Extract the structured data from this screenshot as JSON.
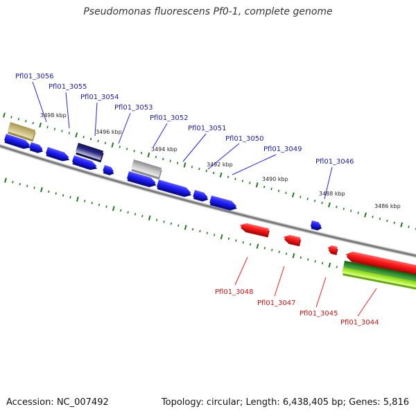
{
  "title": "Pseudomonas fluorescens Pf0-1, complete genome",
  "footer": {
    "accession": "Accession: NC_007492",
    "stats": "Topology: circular; Length: 6,438,405 bp; Genes: 5,816"
  },
  "colors": {
    "forward_gene": "#1f1fff",
    "forward_label": "#1a1aa8",
    "reverse_gene": "#ff1a1a",
    "reverse_label": "#cc1111",
    "backbone": "#7a7a7a",
    "tick": "#1c7a1c",
    "olive_feature": "#b8a860",
    "navy_feature": "#1a1a70",
    "grey_feature": "#bdbdbd",
    "green_feature": "#1f7a1f",
    "lime_feature": "#aaee33"
  },
  "kbp_labels": [
    "3498 kbp",
    "3496 kbp",
    "3494 kbp",
    "3492 kbp",
    "3490 kbp",
    "3488 kbp",
    "3486 kbp"
  ],
  "forward_genes": [
    "Pfl01_3056",
    "Pfl01_3055",
    "Pfl01_3054",
    "Pfl01_3053",
    "Pfl01_3052",
    "Pfl01_3051",
    "Pfl01_3050",
    "Pfl01_3049",
    "Pfl01_3046"
  ],
  "reverse_genes": [
    "Pfl01_3048",
    "Pfl01_3047",
    "Pfl01_3045",
    "Pfl01_3044"
  ]
}
